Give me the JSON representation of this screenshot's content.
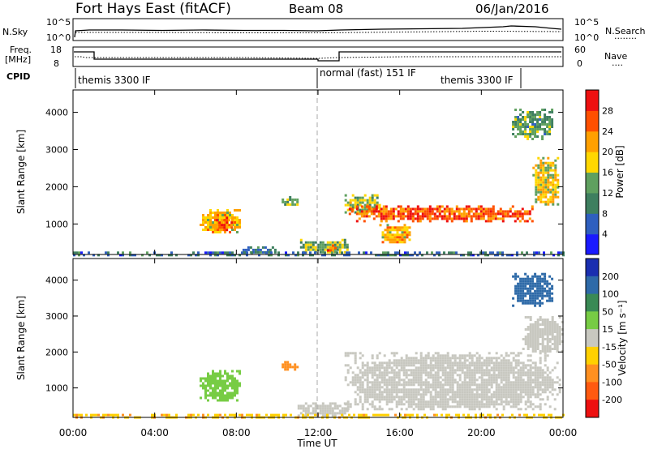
{
  "header": {
    "radar": "Fort Hays East (fitACF)",
    "beam": "Beam 08",
    "date": "06/Jan/2016"
  },
  "noise_panel": {
    "left_label": "N.Sky",
    "left_ticks": [
      "10^5",
      "10^0"
    ],
    "right_ticks": [
      "10^5",
      "10^0"
    ],
    "right_label": "N.Search",
    "right_legend_line": "........"
  },
  "freq_panel": {
    "left_label_1": "Freq.",
    "left_label_2": "[MHz]",
    "left_ticks": [
      "18",
      "8"
    ],
    "right_ticks": [
      "60",
      "0"
    ],
    "right_label": "Nave",
    "right_legend_line": "...."
  },
  "cpid": {
    "label": "CPID",
    "segments": [
      {
        "name": "themis 3300 IF",
        "start_h": 0,
        "end_h": 12
      },
      {
        "name": "normal (fast) 151 IF",
        "start_h": 12,
        "end_h": 22
      },
      {
        "name": "themis 3300 IF",
        "start_h": 22,
        "end_h": 24
      }
    ]
  },
  "power_panel": {
    "ylabel": "Slant Range [km]",
    "yticks": [
      "1000",
      "2000",
      "3000",
      "4000"
    ],
    "colorbar_label": "Power [dB]",
    "colorbar_ticks": [
      "4",
      "8",
      "12",
      "16",
      "20",
      "24",
      "28"
    ],
    "colors": [
      "#1a1aff",
      "#2f5fbf",
      "#3e7f5f",
      "#5fa05f",
      "#ffd700",
      "#ffa000",
      "#ff5000",
      "#ee1010"
    ]
  },
  "velocity_panel": {
    "ylabel": "Slant Range [km]",
    "yticks": [
      "1000",
      "2000",
      "3000",
      "4000"
    ],
    "colorbar_label": "Velocity [m s⁻¹]",
    "colorbar_ticks": [
      "200",
      "100",
      "50",
      "15",
      "-15",
      "-50",
      "-100",
      "-200"
    ],
    "colors": [
      "#1a2fb0",
      "#2e6aa8",
      "#3a8a55",
      "#77cc44",
      "#c8c8c0",
      "#ffd000",
      "#ff9020",
      "#ff5a10",
      "#ee1010"
    ]
  },
  "x_axis": {
    "ticks": [
      "00:00",
      "04:00",
      "08:00",
      "12:00",
      "16:00",
      "20:00",
      "00:00"
    ],
    "label": "Time UT"
  },
  "chart_data": [
    {
      "type": "heatmap",
      "title": "Fort Hays East (fitACF)  Beam 08  06/Jan/2016",
      "xlabel": "Time UT",
      "ylabel": "Slant Range [km]",
      "xlim": [
        0,
        24
      ],
      "ylim": [
        180,
        4600
      ],
      "colorbar": "Power [dB]",
      "clim": [
        0,
        32
      ],
      "regions": [
        {
          "t": [
            6.2,
            8.2
          ],
          "range": [
            750,
            1400
          ],
          "value": 20
        },
        {
          "t": [
            7.0,
            7.8
          ],
          "range": [
            850,
            1200
          ],
          "value": 26
        },
        {
          "t": [
            8.3,
            10.0
          ],
          "range": [
            250,
            400
          ],
          "value": 10
        },
        {
          "t": [
            10.1,
            11.0
          ],
          "range": [
            1500,
            1750
          ],
          "value": 14
        },
        {
          "t": [
            11.0,
            13.5
          ],
          "range": [
            250,
            600
          ],
          "value": 14
        },
        {
          "t": [
            12.2,
            12.9
          ],
          "range": [
            300,
            450
          ],
          "value": 26
        },
        {
          "t": [
            13.3,
            15.0
          ],
          "range": [
            1300,
            1800
          ],
          "value": 16
        },
        {
          "t": [
            15.0,
            16.5
          ],
          "range": [
            500,
            1000
          ],
          "value": 20
        },
        {
          "t": [
            13.5,
            22.5
          ],
          "range": [
            1100,
            1500
          ],
          "value": 26
        },
        {
          "t": [
            22.5,
            23.8
          ],
          "range": [
            1500,
            2800
          ],
          "value": 18
        },
        {
          "t": [
            21.5,
            23.5
          ],
          "range": [
            3300,
            4100
          ],
          "value": 12
        },
        {
          "t": [
            0,
            24
          ],
          "range": [
            180,
            260
          ],
          "value": 8
        }
      ]
    },
    {
      "type": "heatmap",
      "title": "Fort Hays East (fitACF)  Beam 08  06/Jan/2016",
      "xlabel": "Time UT",
      "ylabel": "Slant Range [km]",
      "xlim": [
        0,
        24
      ],
      "ylim": [
        180,
        4600
      ],
      "colorbar": "Velocity [m s-1]",
      "clim": [
        -250,
        250
      ],
      "regions": [
        {
          "t": [
            6.2,
            8.2
          ],
          "range": [
            650,
            1500
          ],
          "value": 30
        },
        {
          "t": [
            10.1,
            11.0
          ],
          "range": [
            1500,
            1750
          ],
          "value": -80
        },
        {
          "t": [
            11.0,
            13.5
          ],
          "range": [
            250,
            600
          ],
          "value": 0
        },
        {
          "t": [
            13.3,
            23.8
          ],
          "range": [
            400,
            2000
          ],
          "value": 0
        },
        {
          "t": [
            22.0,
            24.0
          ],
          "range": [
            2000,
            3000
          ],
          "value": 0
        },
        {
          "t": [
            21.5,
            23.5
          ],
          "range": [
            3300,
            4200
          ],
          "value": 180
        },
        {
          "t": [
            0,
            24
          ],
          "range": [
            180,
            280
          ],
          "value": -40
        }
      ]
    }
  ]
}
